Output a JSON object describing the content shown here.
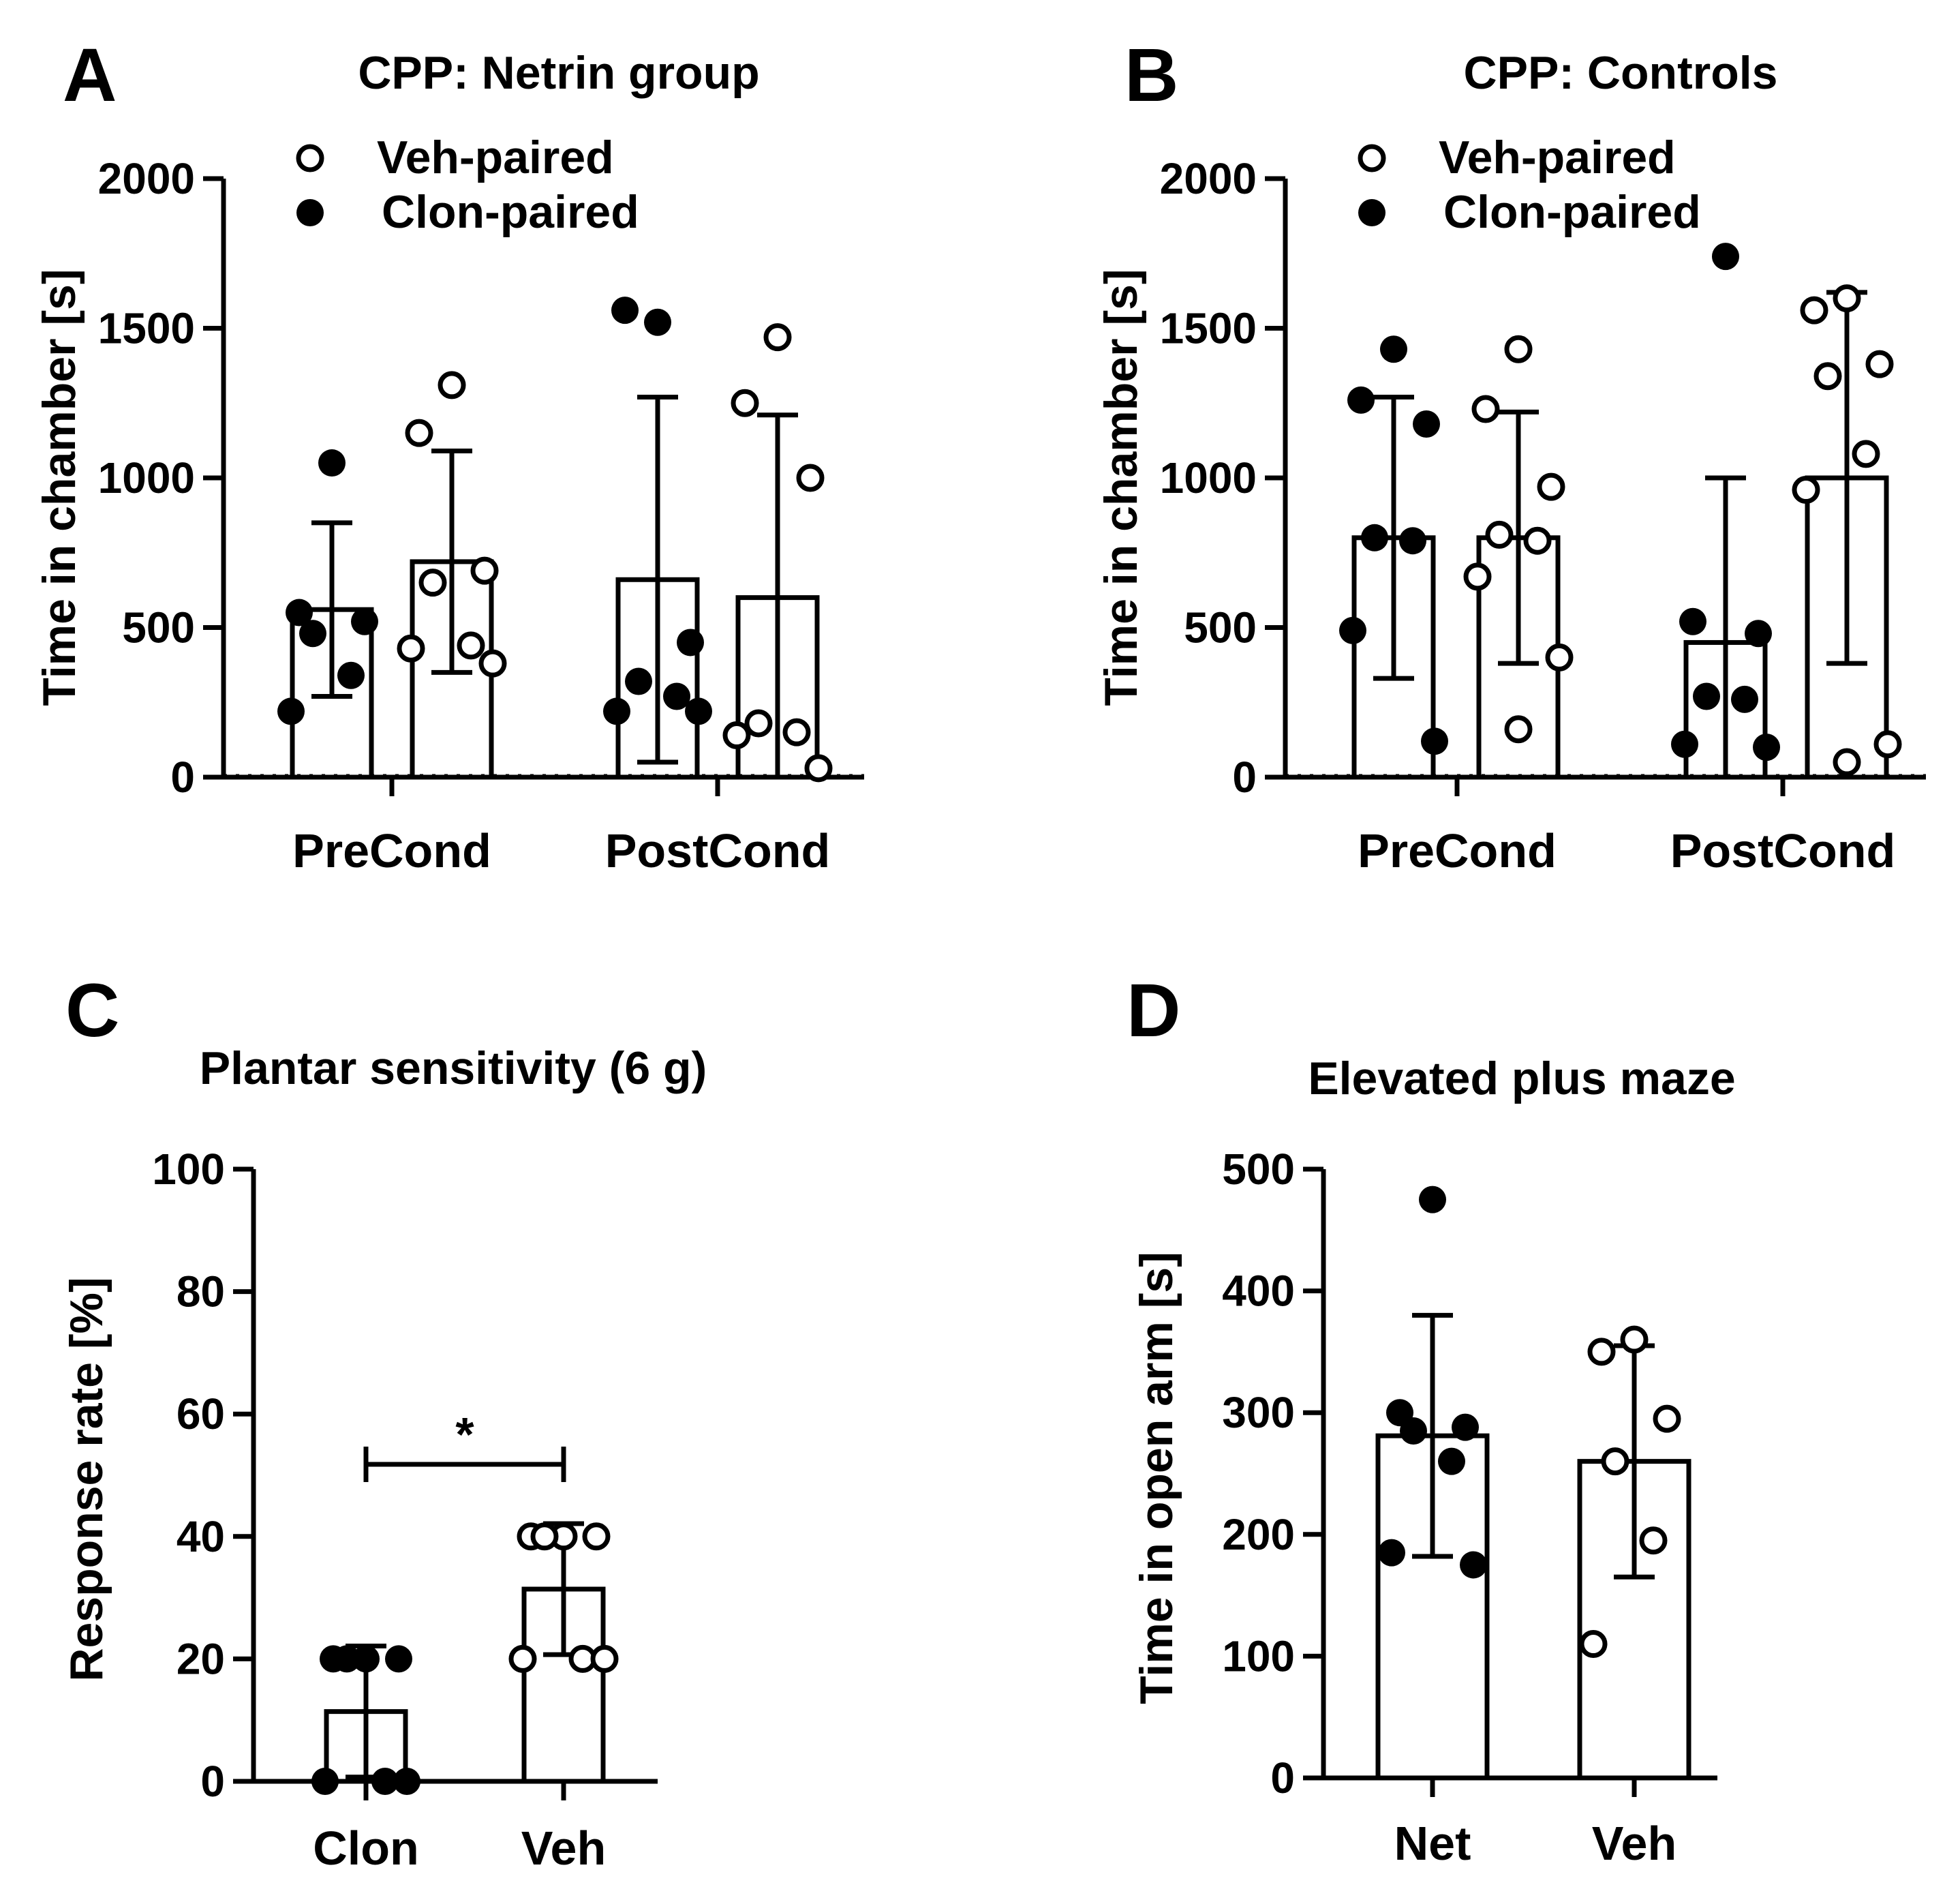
{
  "colors": {
    "ink": "#000000",
    "paper": "#ffffff"
  },
  "chart_data": [
    {
      "panel": "A",
      "type": "bar",
      "title": "CPP: Netrin group",
      "xlabel": "",
      "ylabel": "Time in chamber [s]",
      "ylim": [
        0,
        2000
      ],
      "yticks": [
        "0",
        "500",
        "1000",
        "1500",
        "2000"
      ],
      "groups": [
        "PreCond",
        "PostCond"
      ],
      "legend": [
        {
          "label": "Veh-paired",
          "marker": "open-circle"
        },
        {
          "label": "Clon-paired",
          "marker": "filled-circle"
        }
      ],
      "series": [
        {
          "name": "Clon-paired",
          "marker": "filled",
          "means": [
            560,
            660
          ],
          "sd": [
            290,
            610
          ],
          "points": [
            [
              1050,
              550,
              520,
              480,
              340,
              220
            ],
            [
              1520,
              1560,
              450,
              320,
              270,
              220,
              220
            ]
          ]
        },
        {
          "name": "Veh-paired",
          "marker": "open",
          "means": [
            720,
            600
          ],
          "sd": [
            370,
            610
          ],
          "points": [
            [
              1310,
              1150,
              690,
              650,
              440,
              430,
              380
            ],
            [
              1470,
              1250,
              1000,
              180,
              150,
              140,
              30
            ]
          ]
        }
      ]
    },
    {
      "panel": "B",
      "type": "bar",
      "title": "CPP: Controls",
      "xlabel": "",
      "ylabel": "Time in chamber [s]",
      "ylim": [
        0,
        2000
      ],
      "yticks": [
        "0",
        "500",
        "1000",
        "1500",
        "2000"
      ],
      "groups": [
        "PreCond",
        "PostCond"
      ],
      "legend": [
        {
          "label": "Veh-paired",
          "marker": "open-circle"
        },
        {
          "label": "Clon-paired",
          "marker": "filled-circle"
        }
      ],
      "series": [
        {
          "name": "Clon-paired",
          "marker": "filled",
          "means": [
            800,
            450
          ],
          "sd": [
            470,
            550
          ],
          "points": [
            [
              1430,
              1260,
              1180,
              800,
              790,
              490,
              120
            ],
            [
              1740,
              520,
              480,
              270,
              260,
              110,
              100
            ]
          ]
        },
        {
          "name": "Veh-paired",
          "marker": "open",
          "means": [
            800,
            1000
          ],
          "sd": [
            420,
            620
          ],
          "points": [
            [
              1430,
              1230,
              970,
              810,
              790,
              670,
              400,
              160
            ],
            [
              1600,
              1560,
              1380,
              1340,
              1080,
              960,
              110,
              50
            ]
          ]
        }
      ]
    },
    {
      "panel": "C",
      "type": "bar",
      "title": "Plantar sensitivity (6 g)",
      "xlabel": "",
      "ylabel": "Response rate [%]",
      "ylim": [
        0,
        100
      ],
      "yticks": [
        "0",
        "20",
        "40",
        "60",
        "80",
        "100"
      ],
      "categories": [
        "Clon",
        "Veh"
      ],
      "significance": {
        "label": "*",
        "between": [
          "Clon",
          "Veh"
        ]
      },
      "series": [
        {
          "name": "Clon",
          "marker": "filled",
          "mean": 11.4,
          "sd": 10.7,
          "points": [
            20,
            20,
            20,
            20,
            0,
            0,
            0
          ]
        },
        {
          "name": "Veh",
          "marker": "open",
          "mean": 31.4,
          "sd": 10.7,
          "points": [
            40,
            40,
            40,
            40,
            20,
            20,
            20
          ]
        }
      ]
    },
    {
      "panel": "D",
      "type": "bar",
      "title": "Elevated plus maze",
      "xlabel": "",
      "ylabel": "Time in open arm [s]",
      "ylim": [
        0,
        500
      ],
      "yticks": [
        "0",
        "100",
        "200",
        "300",
        "400",
        "500"
      ],
      "categories": [
        "Net",
        "Veh"
      ],
      "series": [
        {
          "name": "Net",
          "marker": "filled",
          "mean": 281,
          "sd": 99,
          "points": [
            475,
            300,
            288,
            285,
            260,
            185,
            175
          ]
        },
        {
          "name": "Veh",
          "marker": "open",
          "mean": 260,
          "sd": 95,
          "points": [
            360,
            350,
            295,
            260,
            195,
            110
          ]
        }
      ]
    }
  ]
}
